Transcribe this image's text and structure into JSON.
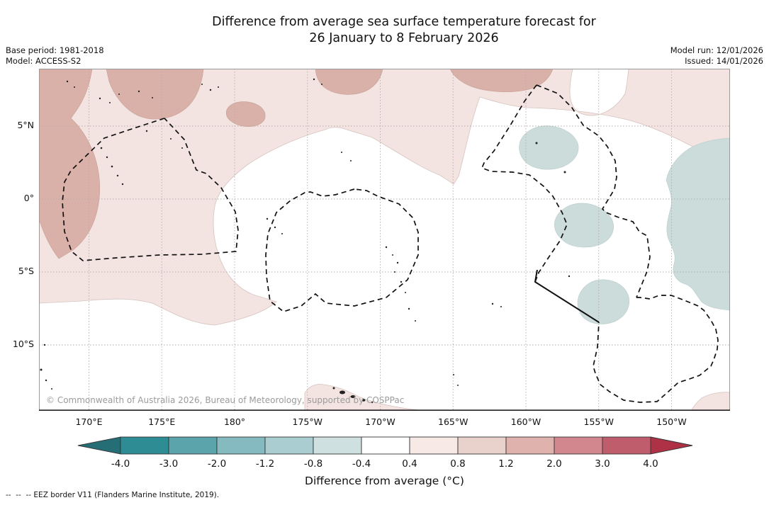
{
  "title": {
    "line1": "Difference from average sea surface temperature forecast for",
    "line2": "26 January to 8 February 2026"
  },
  "meta_left": {
    "base_period": "Base period: 1981-2018",
    "model": "Model: ACCESS-S2"
  },
  "meta_right": {
    "model_run": "Model run: 12/01/2026",
    "issued": "Issued: 14/01/2026"
  },
  "map": {
    "copyright": "© Commonwealth of Australia 2026, Bureau of Meteorology, supported by COSPPac",
    "y_ticks": [
      "5°N",
      "0°",
      "5°S",
      "10°S"
    ],
    "x_ticks": [
      "170°E",
      "175°E",
      "180°",
      "175°W",
      "170°W",
      "165°W",
      "160°W",
      "155°W",
      "150°W"
    ]
  },
  "colorbar": {
    "tick_labels": [
      "-4.0",
      "-3.0",
      "-2.0",
      "-1.2",
      "-0.8",
      "-0.4",
      "0.4",
      "0.8",
      "1.2",
      "2.0",
      "3.0",
      "4.0"
    ],
    "arrow_left_color": "#266e76",
    "arrow_right_color": "#ae3146",
    "segment_colors": [
      "#2e8c95",
      "#5ba4ab",
      "#85bac0",
      "#a9cdd0",
      "#cee0e0",
      "#ffffff",
      "#f6e9e6",
      "#ead2cc",
      "#dfb2ae",
      "#d2878e",
      "#c05d6c"
    ],
    "label": "Difference from average (°C)"
  },
  "footnote": "--  --  -- EEZ border V11 (Flanders Marine Institute, 2019).",
  "chart_data": {
    "type": "heatmap",
    "title": "Difference from average sea surface temperature forecast for 26 January to 8 February 2026",
    "base_period": "1981-2018",
    "model": "ACCESS-S2",
    "model_run": "12/01/2026",
    "issued": "14/01/2026",
    "lon_ticks": [
      "170°E",
      "175°E",
      "180°",
      "175°W",
      "170°W",
      "165°W",
      "160°W",
      "155°W",
      "150°W"
    ],
    "lat_ticks": [
      "5°N",
      "0°",
      "5°S",
      "10°S"
    ],
    "colorbar_levels": [
      -4.0,
      -3.0,
      -2.0,
      -1.2,
      -0.8,
      -0.4,
      0.4,
      0.8,
      1.2,
      2.0,
      3.0,
      4.0
    ],
    "colorbar_label": "Difference from average (°C)",
    "units": "°C",
    "grid": true,
    "legend_position": "bottom colorbar with open-ended arrows",
    "regions": [
      {
        "value_range": "0.4 to 0.8 °C",
        "description": "broad warm band across the north of the map from 170°E to 150°W, extending down the western side to about 5°S and a small area near Fiji at the bottom edge"
      },
      {
        "value_range": "0.8 to 1.2 °C",
        "description": "darker warm patches in the northwest corner and along the top edge near 175°E, 180°, 175°W and 165°W"
      },
      {
        "value_range": "-0.8 to -0.4 °C",
        "description": "cool patches near 160°W 3°N, near 155°W 1°S, near 155°W 6°S and a large area on the eastern edge between 5°N and 8°S"
      },
      {
        "value_range": "-0.4 to 0.4 °C",
        "description": "neutral (white) through the central and southern map"
      }
    ],
    "overlays": [
      "EEZ border V11 dashed outlines (Kiribati, Tuvalu, Tokelau, Cook Islands areas)"
    ]
  }
}
